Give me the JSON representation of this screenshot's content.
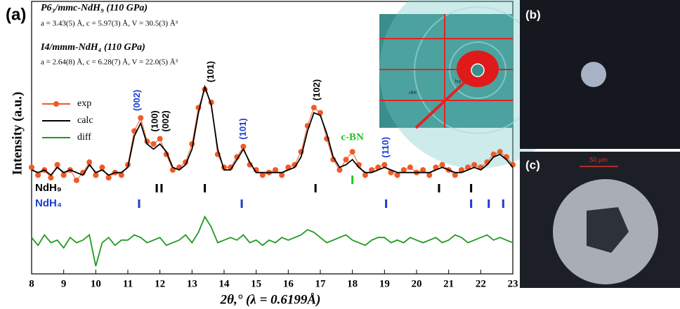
{
  "chart_data": {
    "type": "line",
    "panel_label": "(a)",
    "title_lines": [
      "P6₃/mmc-NdH₉ (110 GPa)",
      "a = 3.43(5) Å, c = 5.97(3) Å, V = 30.5(3) Å³",
      "I4/mmm-NdH₄ (110 GPa)",
      "a = 2.64(8) Å, c = 6.28(7) Å, V = 22.0(5) Å³"
    ],
    "xlabel": "2θ,° (λ = 0.6199Å)",
    "ylabel": "Intensity (a.u.)",
    "xlim": [
      8,
      23
    ],
    "xticks": [
      8,
      9,
      10,
      11,
      12,
      13,
      14,
      15,
      16,
      17,
      18,
      19,
      20,
      21,
      22,
      23
    ],
    "ylim": [
      0,
      100
    ],
    "x": [
      8.0,
      8.2,
      8.4,
      8.6,
      8.8,
      9.0,
      9.2,
      9.4,
      9.6,
      9.8,
      10.0,
      10.2,
      10.4,
      10.6,
      10.8,
      11.0,
      11.2,
      11.4,
      11.6,
      11.8,
      12.0,
      12.2,
      12.4,
      12.6,
      12.8,
      13.0,
      13.2,
      13.4,
      13.6,
      13.8,
      14.0,
      14.2,
      14.4,
      14.6,
      14.8,
      15.0,
      15.2,
      15.4,
      15.6,
      15.8,
      16.0,
      16.2,
      16.4,
      16.6,
      16.8,
      17.0,
      17.2,
      17.4,
      17.6,
      17.8,
      18.0,
      18.2,
      18.4,
      18.6,
      18.8,
      19.0,
      19.2,
      19.4,
      19.6,
      19.8,
      20.0,
      20.2,
      20.4,
      20.6,
      20.8,
      21.0,
      21.2,
      21.4,
      21.6,
      21.8,
      22.0,
      22.2,
      22.4,
      22.6,
      22.8,
      23.0
    ],
    "series": [
      {
        "name": "exp",
        "color": "#f05a28",
        "markers": true,
        "values": [
          41,
          38,
          40,
          37,
          42,
          38,
          40,
          36,
          39,
          43,
          38,
          41,
          37,
          39,
          38,
          42,
          55,
          60,
          51,
          50,
          52,
          46,
          40,
          41,
          43,
          50,
          64,
          71,
          66,
          46,
          41,
          41,
          45,
          49,
          42,
          40,
          38,
          39,
          40,
          38,
          41,
          42,
          47,
          57,
          64,
          62,
          52,
          44,
          40,
          44,
          47,
          42,
          38,
          40,
          41,
          42,
          39,
          38,
          40,
          41,
          39,
          40,
          38,
          41,
          42,
          40,
          38,
          40,
          41,
          42,
          41,
          43,
          46,
          47,
          45,
          42
        ]
      },
      {
        "name": "calc",
        "color": "#000000",
        "markers": false,
        "values": [
          40,
          39,
          40,
          38,
          41,
          39,
          40,
          39,
          38,
          42,
          39,
          40,
          38,
          39,
          39,
          41,
          53,
          58,
          50,
          48,
          50,
          47,
          41,
          40,
          42,
          48,
          62,
          72,
          65,
          48,
          40,
          40,
          44,
          48,
          43,
          39,
          39,
          39,
          39,
          39,
          40,
          41,
          45,
          55,
          62,
          61,
          54,
          45,
          41,
          42,
          44,
          41,
          39,
          39,
          40,
          41,
          40,
          39,
          39,
          39,
          39,
          39,
          39,
          40,
          41,
          40,
          39,
          39,
          40,
          41,
          40,
          42,
          45,
          46,
          44,
          41
        ]
      },
      {
        "name": "diff",
        "color": "#1f9a1f",
        "markers": false,
        "values": [
          14,
          11,
          15,
          12,
          13,
          10,
          14,
          12,
          13,
          15,
          3,
          12,
          14,
          11,
          13,
          13,
          15,
          14,
          12,
          13,
          14,
          11,
          12,
          13,
          15,
          12,
          16,
          22,
          18,
          12,
          13,
          14,
          13,
          15,
          12,
          13,
          11,
          13,
          12,
          14,
          13,
          14,
          15,
          17,
          16,
          14,
          12,
          13,
          14,
          15,
          13,
          12,
          11,
          13,
          14,
          14,
          12,
          13,
          12,
          14,
          13,
          12,
          13,
          14,
          12,
          13,
          15,
          14,
          12,
          13,
          14,
          15,
          13,
          14,
          13,
          12
        ]
      }
    ],
    "reflections": [
      {
        "name": "NdH₉",
        "color": "#000000",
        "positions": [
          11.9,
          12.05,
          13.4,
          16.85,
          20.7,
          21.7
        ]
      },
      {
        "name": "NdH₄",
        "color": "#1a3fd0",
        "positions": [
          11.35,
          14.55,
          19.05,
          21.7,
          22.25,
          22.7
        ]
      },
      {
        "name": "c-BN",
        "color": "#22c422",
        "positions": [
          18.0
        ]
      }
    ],
    "annotations": [
      {
        "text": "(002)",
        "x": 11.3,
        "color": "#1a3fd0"
      },
      {
        "text": "(100)",
        "x": 11.85,
        "color": "#000000"
      },
      {
        "text": "(002)",
        "x": 12.2,
        "color": "#000000"
      },
      {
        "text": "(101)",
        "x": 13.6,
        "color": "#000000"
      },
      {
        "text": "(101)",
        "x": 14.6,
        "color": "#1a3fd0"
      },
      {
        "text": "(102)",
        "x": 16.9,
        "color": "#000000"
      },
      {
        "text": "(110)",
        "x": 19.05,
        "color": "#1a3fd0"
      }
    ]
  },
  "inset": {
    "hcp": "hcp",
    "cbn": "cBN"
  },
  "panel_b": {
    "label": "(b)"
  },
  "panel_c": {
    "label": "(c)",
    "scale_bar": "50 µm"
  }
}
